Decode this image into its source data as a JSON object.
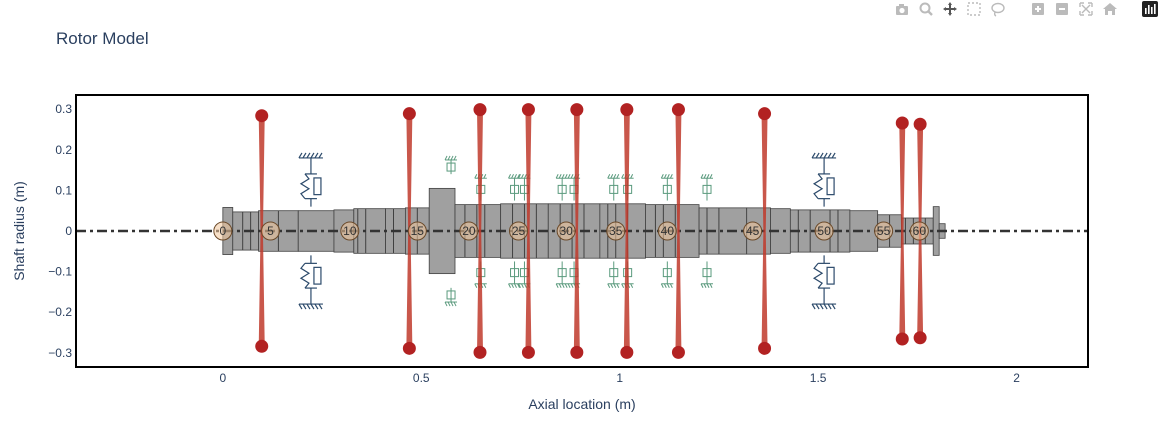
{
  "modebar": {
    "items": [
      "camera-icon",
      "zoom-icon",
      "pan-icon",
      "box-select-icon",
      "lasso-select-icon",
      "zoom-in-icon",
      "zoom-out-icon",
      "autoscale-icon",
      "reset-axes-icon",
      "plotly-logo-icon"
    ]
  },
  "colors": {
    "shaft": "#a0a0a0",
    "shaft_edge": "#404040",
    "disk": "#b22222",
    "disk_stem": "#c0392b",
    "node": "#f2c79a",
    "bearing": "#2c4a6b",
    "seal": "#5a9a7d",
    "centerline": "#333333",
    "axis_text": "#2a3f5f"
  },
  "chart_data": {
    "type": "scatter",
    "title": "Rotor Model",
    "xlabel": "Axial location (m)",
    "ylabel": "Shaft radius (m)",
    "xlim": [
      -0.37,
      2.18
    ],
    "ylim": [
      -0.335,
      0.335
    ],
    "xticks": [
      {
        "v": 0,
        "label": "0"
      },
      {
        "v": 0.5,
        "label": "0.5"
      },
      {
        "v": 1,
        "label": "1"
      },
      {
        "v": 1.5,
        "label": "1.5"
      },
      {
        "v": 2,
        "label": "2"
      }
    ],
    "yticks": [
      {
        "v": 0.3,
        "label": "0.3"
      },
      {
        "v": 0.2,
        "label": "0.2"
      },
      {
        "v": 0.1,
        "label": "0.1"
      },
      {
        "v": 0,
        "label": "0"
      },
      {
        "v": -0.1,
        "label": "−0.1"
      },
      {
        "v": -0.2,
        "label": "−0.2"
      },
      {
        "v": -0.3,
        "label": "−0.3"
      }
    ],
    "grid": false,
    "shaft_sections": [
      {
        "x0": 0.0,
        "x1": 0.025,
        "r": 0.058
      },
      {
        "x0": 0.025,
        "x1": 0.09,
        "r": 0.047
      },
      {
        "x0": 0.09,
        "x1": 0.19,
        "r": 0.05
      },
      {
        "x0": 0.19,
        "x1": 0.28,
        "r": 0.05
      },
      {
        "x0": 0.28,
        "x1": 0.33,
        "r": 0.052
      },
      {
        "x0": 0.33,
        "x1": 0.41,
        "r": 0.055
      },
      {
        "x0": 0.41,
        "x1": 0.46,
        "r": 0.055
      },
      {
        "x0": 0.46,
        "x1": 0.52,
        "r": 0.057
      },
      {
        "x0": 0.52,
        "x1": 0.585,
        "r": 0.105
      },
      {
        "x0": 0.585,
        "x1": 0.7,
        "r": 0.065
      },
      {
        "x0": 0.7,
        "x1": 0.82,
        "r": 0.067
      },
      {
        "x0": 0.82,
        "x1": 0.95,
        "r": 0.067
      },
      {
        "x0": 0.95,
        "x1": 1.065,
        "r": 0.067
      },
      {
        "x0": 1.065,
        "x1": 1.2,
        "r": 0.065
      },
      {
        "x0": 1.2,
        "x1": 1.32,
        "r": 0.057
      },
      {
        "x0": 1.32,
        "x1": 1.38,
        "r": 0.057
      },
      {
        "x0": 1.38,
        "x1": 1.43,
        "r": 0.055
      },
      {
        "x0": 1.43,
        "x1": 1.58,
        "r": 0.052
      },
      {
        "x0": 1.58,
        "x1": 1.65,
        "r": 0.05
      },
      {
        "x0": 1.65,
        "x1": 1.71,
        "r": 0.04
      },
      {
        "x0": 1.71,
        "x1": 1.79,
        "r": 0.032
      },
      {
        "x0": 1.79,
        "x1": 1.805,
        "r": 0.06
      },
      {
        "x0": 1.805,
        "x1": 1.82,
        "r": 0.018
      }
    ],
    "shaft_dividers": [
      0.05,
      0.07,
      0.14,
      0.34,
      0.36,
      0.43,
      0.49,
      0.61,
      0.64,
      0.66,
      0.73,
      0.76,
      0.79,
      0.85,
      0.88,
      0.91,
      0.97,
      0.99,
      1.02,
      1.09,
      1.11,
      1.14,
      1.22,
      1.25,
      1.45,
      1.48,
      1.53,
      1.55,
      1.68,
      1.72,
      1.74,
      1.77
    ],
    "nodes": [
      {
        "x": 0.0,
        "label": "0"
      },
      {
        "x": 0.12,
        "label": "5"
      },
      {
        "x": 0.32,
        "label": "10"
      },
      {
        "x": 0.49,
        "label": "15"
      },
      {
        "x": 0.62,
        "label": "20"
      },
      {
        "x": 0.745,
        "label": "25"
      },
      {
        "x": 0.865,
        "label": "30"
      },
      {
        "x": 0.99,
        "label": "35"
      },
      {
        "x": 1.12,
        "label": "40"
      },
      {
        "x": 1.335,
        "label": "45"
      },
      {
        "x": 1.515,
        "label": "50"
      },
      {
        "x": 1.665,
        "label": "55"
      },
      {
        "x": 1.755,
        "label": "60"
      }
    ],
    "disks": [
      {
        "x": 0.098,
        "r": 0.284
      },
      {
        "x": 0.47,
        "r": 0.289
      },
      {
        "x": 0.648,
        "r": 0.299
      },
      {
        "x": 0.77,
        "r": 0.299
      },
      {
        "x": 0.892,
        "r": 0.299
      },
      {
        "x": 1.018,
        "r": 0.299
      },
      {
        "x": 1.148,
        "r": 0.299
      },
      {
        "x": 1.365,
        "r": 0.289
      },
      {
        "x": 1.712,
        "r": 0.266
      },
      {
        "x": 1.757,
        "r": 0.263
      }
    ],
    "bearings": [
      {
        "x": 0.222,
        "y_in": 0.06,
        "y_out": 0.18
      },
      {
        "x": 1.515,
        "y_in": 0.06,
        "y_out": 0.18
      }
    ],
    "seals": [
      {
        "x": 0.575,
        "y_in": 0.14,
        "y_out": 0.175
      },
      {
        "x": 0.65,
        "y_in": 0.075,
        "y_out": 0.13
      },
      {
        "x": 0.735,
        "y_in": 0.075,
        "y_out": 0.13
      },
      {
        "x": 0.76,
        "y_in": 0.075,
        "y_out": 0.13
      },
      {
        "x": 0.855,
        "y_in": 0.075,
        "y_out": 0.13
      },
      {
        "x": 0.885,
        "y_in": 0.075,
        "y_out": 0.13
      },
      {
        "x": 0.985,
        "y_in": 0.075,
        "y_out": 0.13
      },
      {
        "x": 1.02,
        "y_in": 0.075,
        "y_out": 0.13
      },
      {
        "x": 1.12,
        "y_in": 0.075,
        "y_out": 0.13
      },
      {
        "x": 1.22,
        "y_in": 0.075,
        "y_out": 0.13
      }
    ]
  }
}
